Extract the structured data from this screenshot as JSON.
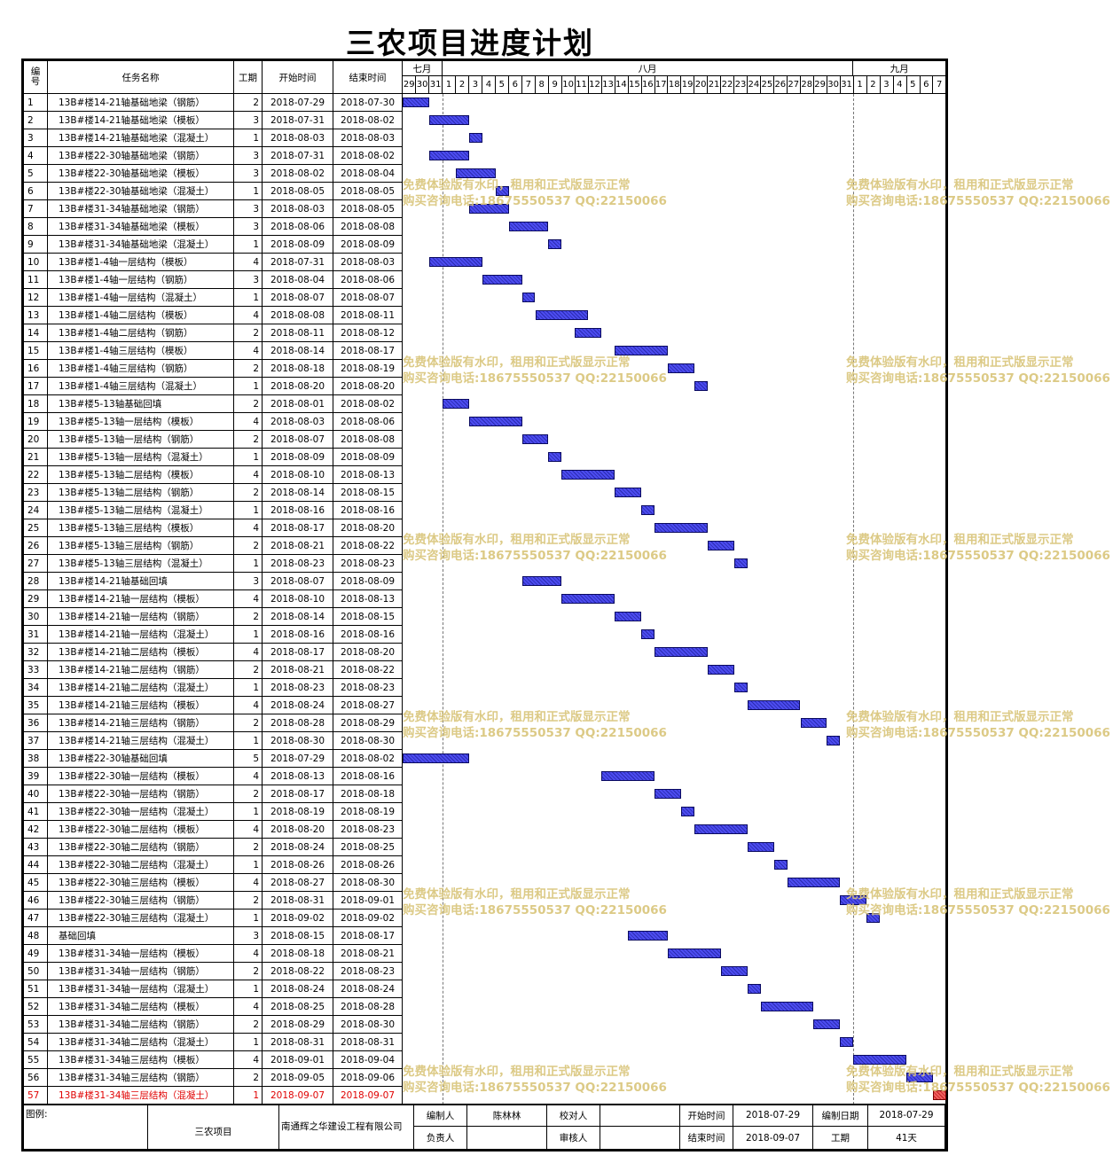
{
  "title": "三农项目进度计划",
  "header": {
    "no": "编号",
    "task": "任务名称",
    "dur": "工期",
    "start": "开始时间",
    "end": "结束时间",
    "months": [
      {
        "name": "七月",
        "days": [
          "29",
          "30",
          "31"
        ]
      },
      {
        "name": "八月",
        "days": [
          "1",
          "2",
          "3",
          "4",
          "5",
          "6",
          "7",
          "8",
          "9",
          "10",
          "11",
          "12",
          "13",
          "14",
          "15",
          "16",
          "17",
          "18",
          "19",
          "20",
          "21",
          "22",
          "23",
          "24",
          "25",
          "26",
          "27",
          "28",
          "29",
          "30",
          "31"
        ]
      },
      {
        "name": "九月",
        "days": [
          "1",
          "2",
          "3",
          "4",
          "5",
          "6",
          "7"
        ]
      }
    ]
  },
  "watermark": {
    "line1": "免费体验版有水印，租用和正式版显示正常",
    "line2": "购买咨询电话:18675550537 QQ:22150066"
  },
  "tasks": [
    {
      "no": "1",
      "name": "13B#楼14-21轴基础地梁（钢筋）",
      "dur": "2",
      "start": "2018-07-29",
      "end": "2018-07-30"
    },
    {
      "no": "2",
      "name": "13B#楼14-21轴基础地梁（模板）",
      "dur": "3",
      "start": "2018-07-31",
      "end": "2018-08-02"
    },
    {
      "no": "3",
      "name": "13B#楼14-21轴基础地梁（混凝土）",
      "dur": "1",
      "start": "2018-08-03",
      "end": "2018-08-03"
    },
    {
      "no": "4",
      "name": "13B#楼22-30轴基础地梁（钢筋）",
      "dur": "3",
      "start": "2018-07-31",
      "end": "2018-08-02"
    },
    {
      "no": "5",
      "name": "13B#楼22-30轴基础地梁（模板）",
      "dur": "3",
      "start": "2018-08-02",
      "end": "2018-08-04"
    },
    {
      "no": "6",
      "name": "13B#楼22-30轴基础地梁（混凝土）",
      "dur": "1",
      "start": "2018-08-05",
      "end": "2018-08-05"
    },
    {
      "no": "7",
      "name": "13B#楼31-34轴基础地梁（钢筋）",
      "dur": "3",
      "start": "2018-08-03",
      "end": "2018-08-05"
    },
    {
      "no": "8",
      "name": "13B#楼31-34轴基础地梁（模板）",
      "dur": "3",
      "start": "2018-08-06",
      "end": "2018-08-08"
    },
    {
      "no": "9",
      "name": "13B#楼31-34轴基础地梁（混凝土）",
      "dur": "1",
      "start": "2018-08-09",
      "end": "2018-08-09"
    },
    {
      "no": "10",
      "name": "13B#楼1-4轴一层结构（模板）",
      "dur": "4",
      "start": "2018-07-31",
      "end": "2018-08-03"
    },
    {
      "no": "11",
      "name": "13B#楼1-4轴一层结构（钢筋）",
      "dur": "3",
      "start": "2018-08-04",
      "end": "2018-08-06"
    },
    {
      "no": "12",
      "name": "13B#楼1-4轴一层结构（混凝土）",
      "dur": "1",
      "start": "2018-08-07",
      "end": "2018-08-07"
    },
    {
      "no": "13",
      "name": "13B#楼1-4轴二层结构（模板）",
      "dur": "4",
      "start": "2018-08-08",
      "end": "2018-08-11"
    },
    {
      "no": "14",
      "name": "13B#楼1-4轴二层结构（钢筋）",
      "dur": "2",
      "start": "2018-08-11",
      "end": "2018-08-12"
    },
    {
      "no": "15",
      "name": "13B#楼1-4轴三层结构（模板）",
      "dur": "4",
      "start": "2018-08-14",
      "end": "2018-08-17"
    },
    {
      "no": "16",
      "name": "13B#楼1-4轴三层结构（钢筋）",
      "dur": "2",
      "start": "2018-08-18",
      "end": "2018-08-19"
    },
    {
      "no": "17",
      "name": "13B#楼1-4轴三层结构（混凝土）",
      "dur": "1",
      "start": "2018-08-20",
      "end": "2018-08-20"
    },
    {
      "no": "18",
      "name": "13B#楼5-13轴基础回填",
      "dur": "2",
      "start": "2018-08-01",
      "end": "2018-08-02"
    },
    {
      "no": "19",
      "name": "13B#楼5-13轴一层结构（模板）",
      "dur": "4",
      "start": "2018-08-03",
      "end": "2018-08-06"
    },
    {
      "no": "20",
      "name": "13B#楼5-13轴一层结构（钢筋）",
      "dur": "2",
      "start": "2018-08-07",
      "end": "2018-08-08"
    },
    {
      "no": "21",
      "name": "13B#楼5-13轴一层结构（混凝土）",
      "dur": "1",
      "start": "2018-08-09",
      "end": "2018-08-09"
    },
    {
      "no": "22",
      "name": "13B#楼5-13轴二层结构（模板）",
      "dur": "4",
      "start": "2018-08-10",
      "end": "2018-08-13"
    },
    {
      "no": "23",
      "name": "13B#楼5-13轴二层结构（钢筋）",
      "dur": "2",
      "start": "2018-08-14",
      "end": "2018-08-15"
    },
    {
      "no": "24",
      "name": "13B#楼5-13轴二层结构（混凝土）",
      "dur": "1",
      "start": "2018-08-16",
      "end": "2018-08-16"
    },
    {
      "no": "25",
      "name": "13B#楼5-13轴三层结构（模板）",
      "dur": "4",
      "start": "2018-08-17",
      "end": "2018-08-20"
    },
    {
      "no": "26",
      "name": "13B#楼5-13轴三层结构（钢筋）",
      "dur": "2",
      "start": "2018-08-21",
      "end": "2018-08-22"
    },
    {
      "no": "27",
      "name": "13B#楼5-13轴三层结构（混凝土）",
      "dur": "1",
      "start": "2018-08-23",
      "end": "2018-08-23"
    },
    {
      "no": "28",
      "name": "13B#楼14-21轴基础回填",
      "dur": "3",
      "start": "2018-08-07",
      "end": "2018-08-09"
    },
    {
      "no": "29",
      "name": "13B#楼14-21轴一层结构（模板）",
      "dur": "4",
      "start": "2018-08-10",
      "end": "2018-08-13"
    },
    {
      "no": "30",
      "name": "13B#楼14-21轴一层结构（钢筋）",
      "dur": "2",
      "start": "2018-08-14",
      "end": "2018-08-15"
    },
    {
      "no": "31",
      "name": "13B#楼14-21轴一层结构（混凝土）",
      "dur": "1",
      "start": "2018-08-16",
      "end": "2018-08-16"
    },
    {
      "no": "32",
      "name": "13B#楼14-21轴二层结构（模板）",
      "dur": "4",
      "start": "2018-08-17",
      "end": "2018-08-20"
    },
    {
      "no": "33",
      "name": "13B#楼14-21轴二层结构（钢筋）",
      "dur": "2",
      "start": "2018-08-21",
      "end": "2018-08-22"
    },
    {
      "no": "34",
      "name": "13B#楼14-21轴二层结构（混凝土）",
      "dur": "1",
      "start": "2018-08-23",
      "end": "2018-08-23"
    },
    {
      "no": "35",
      "name": "13B#楼14-21轴三层结构（模板）",
      "dur": "4",
      "start": "2018-08-24",
      "end": "2018-08-27"
    },
    {
      "no": "36",
      "name": "13B#楼14-21轴三层结构（钢筋）",
      "dur": "2",
      "start": "2018-08-28",
      "end": "2018-08-29"
    },
    {
      "no": "37",
      "name": "13B#楼14-21轴三层结构（混凝土）",
      "dur": "1",
      "start": "2018-08-30",
      "end": "2018-08-30"
    },
    {
      "no": "38",
      "name": "13B#楼22-30轴基础回填",
      "dur": "5",
      "start": "2018-07-29",
      "end": "2018-08-02"
    },
    {
      "no": "39",
      "name": "13B#楼22-30轴一层结构（模板）",
      "dur": "4",
      "start": "2018-08-13",
      "end": "2018-08-16"
    },
    {
      "no": "40",
      "name": "13B#楼22-30轴一层结构（钢筋）",
      "dur": "2",
      "start": "2018-08-17",
      "end": "2018-08-18"
    },
    {
      "no": "41",
      "name": "13B#楼22-30轴一层结构（混凝土）",
      "dur": "1",
      "start": "2018-08-19",
      "end": "2018-08-19"
    },
    {
      "no": "42",
      "name": "13B#楼22-30轴二层结构（模板）",
      "dur": "4",
      "start": "2018-08-20",
      "end": "2018-08-23"
    },
    {
      "no": "43",
      "name": "13B#楼22-30轴二层结构（钢筋）",
      "dur": "2",
      "start": "2018-08-24",
      "end": "2018-08-25"
    },
    {
      "no": "44",
      "name": "13B#楼22-30轴二层结构（混凝土）",
      "dur": "1",
      "start": "2018-08-26",
      "end": "2018-08-26"
    },
    {
      "no": "45",
      "name": "13B#楼22-30轴三层结构（模板）",
      "dur": "4",
      "start": "2018-08-27",
      "end": "2018-08-30"
    },
    {
      "no": "46",
      "name": "13B#楼22-30轴三层结构（钢筋）",
      "dur": "2",
      "start": "2018-08-31",
      "end": "2018-09-01"
    },
    {
      "no": "47",
      "name": "13B#楼22-30轴三层结构（混凝土）",
      "dur": "1",
      "start": "2018-09-02",
      "end": "2018-09-02"
    },
    {
      "no": "48",
      "name": "基础回填",
      "dur": "3",
      "start": "2018-08-15",
      "end": "2018-08-17"
    },
    {
      "no": "49",
      "name": "13B#楼31-34轴一层结构（模板）",
      "dur": "4",
      "start": "2018-08-18",
      "end": "2018-08-21"
    },
    {
      "no": "50",
      "name": "13B#楼31-34轴一层结构（钢筋）",
      "dur": "2",
      "start": "2018-08-22",
      "end": "2018-08-23"
    },
    {
      "no": "51",
      "name": "13B#楼31-34轴一层结构（混凝土）",
      "dur": "1",
      "start": "2018-08-24",
      "end": "2018-08-24"
    },
    {
      "no": "52",
      "name": "13B#楼31-34轴二层结构（模板）",
      "dur": "4",
      "start": "2018-08-25",
      "end": "2018-08-28"
    },
    {
      "no": "53",
      "name": "13B#楼31-34轴二层结构（钢筋）",
      "dur": "2",
      "start": "2018-08-29",
      "end": "2018-08-30"
    },
    {
      "no": "54",
      "name": "13B#楼31-34轴二层结构（混凝土）",
      "dur": "1",
      "start": "2018-08-31",
      "end": "2018-08-31"
    },
    {
      "no": "55",
      "name": "13B#楼31-34轴三层结构（模板）",
      "dur": "4",
      "start": "2018-09-01",
      "end": "2018-09-04"
    },
    {
      "no": "56",
      "name": "13B#楼31-34轴三层结构（钢筋）",
      "dur": "2",
      "start": "2018-09-05",
      "end": "2018-09-06"
    },
    {
      "no": "57",
      "name": "13B#楼31-34轴三层结构（混凝土）",
      "dur": "1",
      "start": "2018-09-07",
      "end": "2018-09-07",
      "critical": true
    }
  ],
  "footer": {
    "legend": "图例:",
    "project": "三农项目",
    "company": "南通辉之华建设工程有限公司",
    "prepared_by_label": "编制人",
    "prepared_by": "陈林林",
    "checker_label": "校对人",
    "checker": "",
    "start_label": "开始时间",
    "start": "2018-07-29",
    "date_label": "编制日期",
    "date": "2018-07-29",
    "owner_label": "负责人",
    "owner": "",
    "reviewer_label": "审核人",
    "reviewer": "",
    "end_label": "结束时间",
    "end": "2018-09-07",
    "duration_label": "工期",
    "duration": "41天"
  },
  "colors": {
    "bar": "#3a3ad8",
    "critical": "#e03a3a",
    "watermark": "#d9c57a"
  },
  "chart_data": {
    "type": "gantt",
    "title": "三农项目进度计划",
    "x_range": [
      "2018-07-29",
      "2018-09-07"
    ],
    "series": [
      {
        "values": "see tasks[] start/end dates"
      }
    ]
  }
}
